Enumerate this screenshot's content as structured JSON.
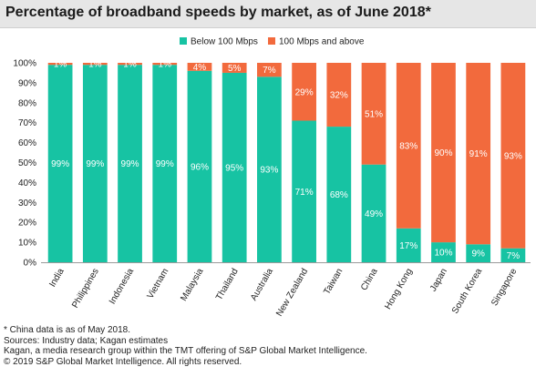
{
  "title": "Percentage of broadband speeds by market, as of June 2018*",
  "chart_data": {
    "type": "bar",
    "stacked": true,
    "orientation": "vertical",
    "categories": [
      "India",
      "Philippines",
      "Indonesia",
      "Vietnam",
      "Malaysia",
      "Thailand",
      "Australia",
      "New Zealand",
      "Taiwan",
      "China",
      "Hong Kong",
      "Japan",
      "South Korea",
      "Singapore"
    ],
    "series": [
      {
        "name": "Below 100 Mbps",
        "color": "#17c3a3",
        "values": [
          99,
          99,
          99,
          99,
          96,
          95,
          93,
          71,
          68,
          49,
          17,
          10,
          9,
          7
        ],
        "labels": [
          "99%",
          "99%",
          "99%",
          "99%",
          "96%",
          "95%",
          "93%",
          "71%",
          "68%",
          "49%",
          "17%",
          "10%",
          "9%",
          "7%"
        ]
      },
      {
        "name": "100 Mbps and above",
        "color": "#f26a3d",
        "values": [
          1,
          1,
          1,
          1,
          4,
          5,
          7,
          29,
          32,
          51,
          83,
          90,
          91,
          93
        ],
        "labels": [
          "1%",
          "1%",
          "1%",
          "1%",
          "4%",
          "5%",
          "7%",
          "29%",
          "32%",
          "51%",
          "83%",
          "90%",
          "91%",
          "93%"
        ]
      }
    ],
    "y_ticks": [
      "0%",
      "10%",
      "20%",
      "30%",
      "40%",
      "50%",
      "60%",
      "70%",
      "80%",
      "90%",
      "100%"
    ],
    "ylim": [
      0,
      100
    ],
    "legend_position": "top-center",
    "grid": false
  },
  "footnotes": [
    "* China data is as of May 2018.",
    "Sources: Industry data; Kagan estimates",
    "Kagan, a media research group within the TMT offering of S&P Global Market Intelligence.",
    "© 2019 S&P Global Market Intelligence. All rights reserved."
  ]
}
